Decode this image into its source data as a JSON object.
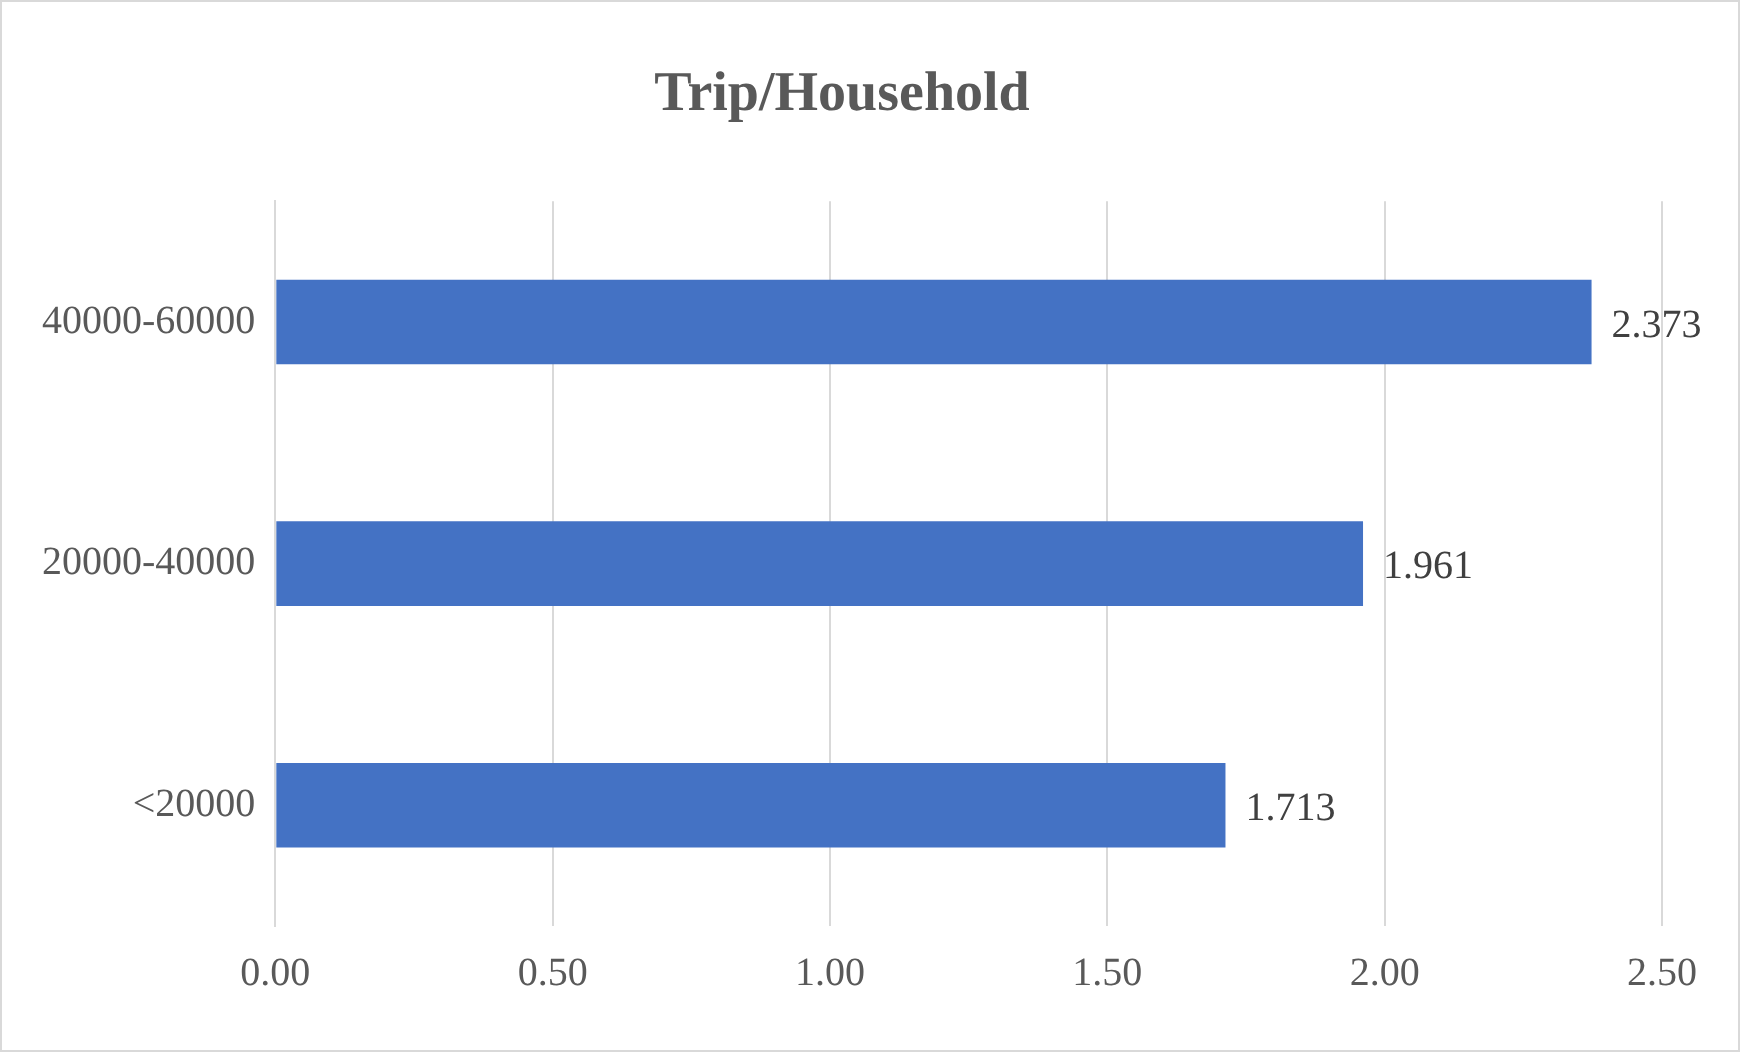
{
  "chart_data": {
    "type": "bar",
    "orientation": "horizontal",
    "title": "Trip/Household",
    "categories": [
      "40000-60000",
      "20000-40000",
      "<20000"
    ],
    "values": [
      2.373,
      1.961,
      1.713
    ],
    "color": "#4472c4",
    "xlim": [
      0,
      2.5
    ],
    "xticks": [
      {
        "value": 0,
        "label": "0.00"
      },
      {
        "value": 0.5,
        "label": "0.50"
      },
      {
        "value": 1,
        "label": "1.00"
      },
      {
        "value": 1.5,
        "label": "1.50"
      },
      {
        "value": 2,
        "label": "2.00"
      },
      {
        "value": 2.5,
        "label": "2.50"
      }
    ],
    "grid": "x",
    "data_labels": true
  }
}
